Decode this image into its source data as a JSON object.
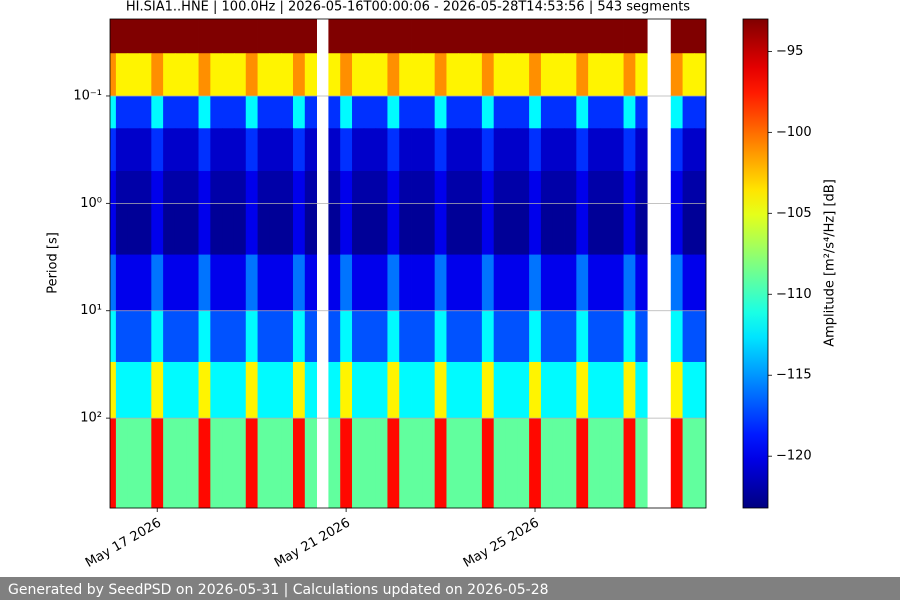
{
  "chart_data": {
    "type": "heatmap",
    "title": "HI.SIA1..HNE | 100.0Hz | 2026-05-16T00:00:06 - 2026-05-28T14:53:56 | 543 segments",
    "y_label": "Period [s]",
    "colorbar_label": "Amplitude [m²/s⁴/Hz] [dB]",
    "colormap": "jet",
    "log_y": true,
    "grid": true,
    "xlim": [
      "2026-05-16T00:00:06",
      "2026-05-28T14:53:56"
    ],
    "xticks": [
      {
        "value": "2026-05-17",
        "label": "May 17 2026"
      },
      {
        "value": "2026-05-21",
        "label": "May 21 2026"
      },
      {
        "value": "2026-05-25",
        "label": "May 25 2026"
      }
    ],
    "ylim": [
      687,
      0.0192
    ],
    "yticks": [
      {
        "value": 0.1,
        "label": "10⁻¹"
      },
      {
        "value": 1,
        "label": "10⁰"
      },
      {
        "value": 10,
        "label": "10¹"
      },
      {
        "value": 100,
        "label": "10²"
      }
    ],
    "zlim": [
      -123.2,
      -93.0
    ],
    "zticks": [
      {
        "value": -95,
        "label": "−95"
      },
      {
        "value": -100,
        "label": "−100"
      },
      {
        "value": -105,
        "label": "−105"
      },
      {
        "value": -110,
        "label": "−110"
      },
      {
        "value": -115,
        "label": "−115"
      },
      {
        "value": -120,
        "label": "−120"
      }
    ],
    "x": [
      "2026-05-16T00:00:06",
      "2026-05-16T03:00",
      "2026-05-16T09:00",
      "2026-05-16T15:00",
      "2026-05-16T21:00",
      "2026-05-17T03:00",
      "2026-05-17T09:00",
      "2026-05-17T15:00",
      "2026-05-17T21:00",
      "2026-05-18T03:00",
      "2026-05-18T09:00",
      "2026-05-18T15:00",
      "2026-05-18T21:00",
      "2026-05-19T03:00",
      "2026-05-19T09:00",
      "2026-05-19T15:00",
      "2026-05-19T21:00",
      "2026-05-20T03:00",
      "2026-05-20T09:00",
      "2026-05-20T15:00",
      "2026-05-20T21:00",
      "2026-05-21T03:00",
      "2026-05-21T09:00",
      "2026-05-21T15:00",
      "2026-05-21T21:00",
      "2026-05-22T03:00",
      "2026-05-22T09:00",
      "2026-05-22T15:00",
      "2026-05-22T21:00",
      "2026-05-23T03:00",
      "2026-05-23T09:00",
      "2026-05-23T15:00",
      "2026-05-23T21:00",
      "2026-05-24T03:00",
      "2026-05-24T09:00",
      "2026-05-24T15:00",
      "2026-05-24T21:00",
      "2026-05-25T03:00",
      "2026-05-25T09:00",
      "2026-05-25T15:00",
      "2026-05-25T21:00",
      "2026-05-26T03:00",
      "2026-05-26T09:00",
      "2026-05-26T15:00",
      "2026-05-26T21:00",
      "2026-05-27T03:00",
      "2026-05-27T09:00",
      "2026-05-27T15:00",
      "2026-05-27T21:00",
      "2026-05-28T03:00",
      "2026-05-28T09:00",
      "2026-05-28T14:53:56"
    ],
    "y": [
      0.0192,
      0.04,
      0.1,
      0.2,
      0.5,
      1,
      3,
      10,
      30,
      100,
      687
    ],
    "z": [
      [
        -93,
        -93,
        -93,
        -93,
        -93,
        -93,
        -93,
        -93,
        -93,
        -93,
        -93,
        -93,
        -93,
        -93,
        -93,
        -93,
        -93,
        -93,
        null,
        -93,
        -93,
        -93,
        -93,
        -93,
        -93,
        -93,
        -93,
        -93,
        -93,
        -93,
        -93,
        -93,
        -93,
        -93,
        -93,
        -93,
        -93,
        -93,
        -93,
        -93,
        -93,
        -93,
        -93,
        -93,
        -93,
        -93,
        null,
        null,
        -93,
        -93,
        -93
      ],
      [
        -101,
        -104,
        -104,
        -104,
        -101,
        -104,
        -104,
        -104,
        -101,
        -104,
        -104,
        -104,
        -101,
        -104,
        -104,
        -104,
        -101,
        -104,
        null,
        -104,
        -101,
        -104,
        -104,
        -104,
        -101,
        -104,
        -104,
        -104,
        -101,
        -104,
        -104,
        -104,
        -101,
        -104,
        -104,
        -104,
        -101,
        -104,
        -104,
        -104,
        -101,
        -104,
        -104,
        -104,
        -101,
        -104,
        null,
        null,
        -101,
        -104,
        -104
      ],
      [
        -112,
        -118,
        -118,
        -118,
        -112,
        -118,
        -118,
        -118,
        -112,
        -118,
        -118,
        -118,
        -112,
        -118,
        -118,
        -118,
        -112,
        -118,
        null,
        -118,
        -112,
        -118,
        -118,
        -118,
        -112,
        -118,
        -118,
        -118,
        -112,
        -118,
        -118,
        -118,
        -112,
        -118,
        -118,
        -118,
        -112,
        -118,
        -118,
        -118,
        -112,
        -118,
        -118,
        -118,
        -112,
        -118,
        null,
        null,
        -112,
        -118,
        -118
      ],
      [
        -118,
        -121,
        -121,
        -121,
        -118,
        -121,
        -121,
        -121,
        -118,
        -121,
        -121,
        -121,
        -118,
        -121,
        -121,
        -121,
        -118,
        -121,
        null,
        -121,
        -118,
        -121,
        -121,
        -121,
        -118,
        -121,
        -121,
        -121,
        -118,
        -121,
        -121,
        -121,
        -118,
        -121,
        -121,
        -121,
        -118,
        -121,
        -121,
        -121,
        -118,
        -121,
        -121,
        -121,
        -118,
        -121,
        null,
        null,
        -118,
        -121,
        -121
      ],
      [
        -120,
        -122,
        -122,
        -122,
        -120,
        -122,
        -122,
        -122,
        -120,
        -122,
        -122,
        -122,
        -120,
        -122,
        -122,
        -122,
        -120,
        -122,
        null,
        -122,
        -120,
        -122,
        -122,
        -122,
        -120,
        -122,
        -122,
        -122,
        -120,
        -122,
        -122,
        -122,
        -120,
        -122,
        -122,
        -122,
        -120,
        -122,
        -122,
        -122,
        -120,
        -122,
        -122,
        -122,
        -120,
        -122,
        null,
        null,
        -120,
        -122,
        -122
      ],
      [
        -120,
        -122.5,
        -122.5,
        -122.5,
        -120,
        -122.5,
        -122.5,
        -122.5,
        -120,
        -122.5,
        -122.5,
        -122.5,
        -120,
        -122.5,
        -122.5,
        -122.5,
        -120,
        -122.5,
        null,
        -122.5,
        -120,
        -122.5,
        -122.5,
        -122.5,
        -120,
        -122.5,
        -122.5,
        -122.5,
        -120,
        -122.5,
        -122.5,
        -122.5,
        -120,
        -122.5,
        -122.5,
        -122.5,
        -120,
        -122.5,
        -122.5,
        -122.5,
        -120,
        -122.5,
        -122.5,
        -122.5,
        -120,
        -122.5,
        null,
        null,
        -120,
        -122.5,
        -122.5
      ],
      [
        -116,
        -120,
        -120,
        -120,
        -116,
        -120,
        -120,
        -120,
        -116,
        -120,
        -120,
        -120,
        -116,
        -120,
        -120,
        -120,
        -116,
        -120,
        null,
        -120,
        -116,
        -120,
        -120,
        -120,
        -116,
        -120,
        -120,
        -120,
        -116,
        -120,
        -120,
        -120,
        -116,
        -120,
        -120,
        -120,
        -116,
        -120,
        -120,
        -120,
        -116,
        -120,
        -120,
        -120,
        -116,
        -120,
        null,
        null,
        -116,
        -120,
        -120
      ],
      [
        -112,
        -117,
        -117,
        -117,
        -112,
        -117,
        -117,
        -117,
        -112,
        -117,
        -117,
        -117,
        -112,
        -117,
        -117,
        -117,
        -112,
        -117,
        null,
        -117,
        -112,
        -117,
        -117,
        -117,
        -112,
        -117,
        -117,
        -117,
        -112,
        -117,
        -117,
        -117,
        -112,
        -117,
        -117,
        -117,
        -112,
        -117,
        -117,
        -117,
        -112,
        -117,
        -117,
        -117,
        -112,
        -117,
        null,
        null,
        -112,
        -117,
        -117
      ],
      [
        -104,
        -112,
        -112,
        -112,
        -104,
        -112,
        -112,
        -112,
        -104,
        -112,
        -112,
        -112,
        -104,
        -112,
        -112,
        -112,
        -104,
        -112,
        null,
        -112,
        -104,
        -112,
        -112,
        -112,
        -104,
        -112,
        -112,
        -112,
        -104,
        -112,
        -112,
        -112,
        -104,
        -112,
        -112,
        -112,
        -104,
        -112,
        -112,
        -112,
        -104,
        -112,
        -112,
        -112,
        -104,
        -112,
        null,
        null,
        -104,
        -112,
        -112
      ],
      [
        -97,
        -109,
        -109,
        -109,
        -97,
        -109,
        -109,
        -109,
        -97,
        -109,
        -109,
        -109,
        -97,
        -109,
        -109,
        -109,
        -97,
        -109,
        null,
        -109,
        -97,
        -109,
        -109,
        -109,
        -97,
        -109,
        -109,
        -109,
        -97,
        -109,
        -109,
        -109,
        -97,
        -109,
        -109,
        -109,
        -97,
        -109,
        -109,
        -109,
        -97,
        -109,
        -109,
        -109,
        -97,
        -109,
        null,
        null,
        -97,
        -109,
        -109
      ]
    ]
  },
  "footer": "Generated by SeedPSD on 2026-05-31 | Calculations updated on 2026-05-28"
}
